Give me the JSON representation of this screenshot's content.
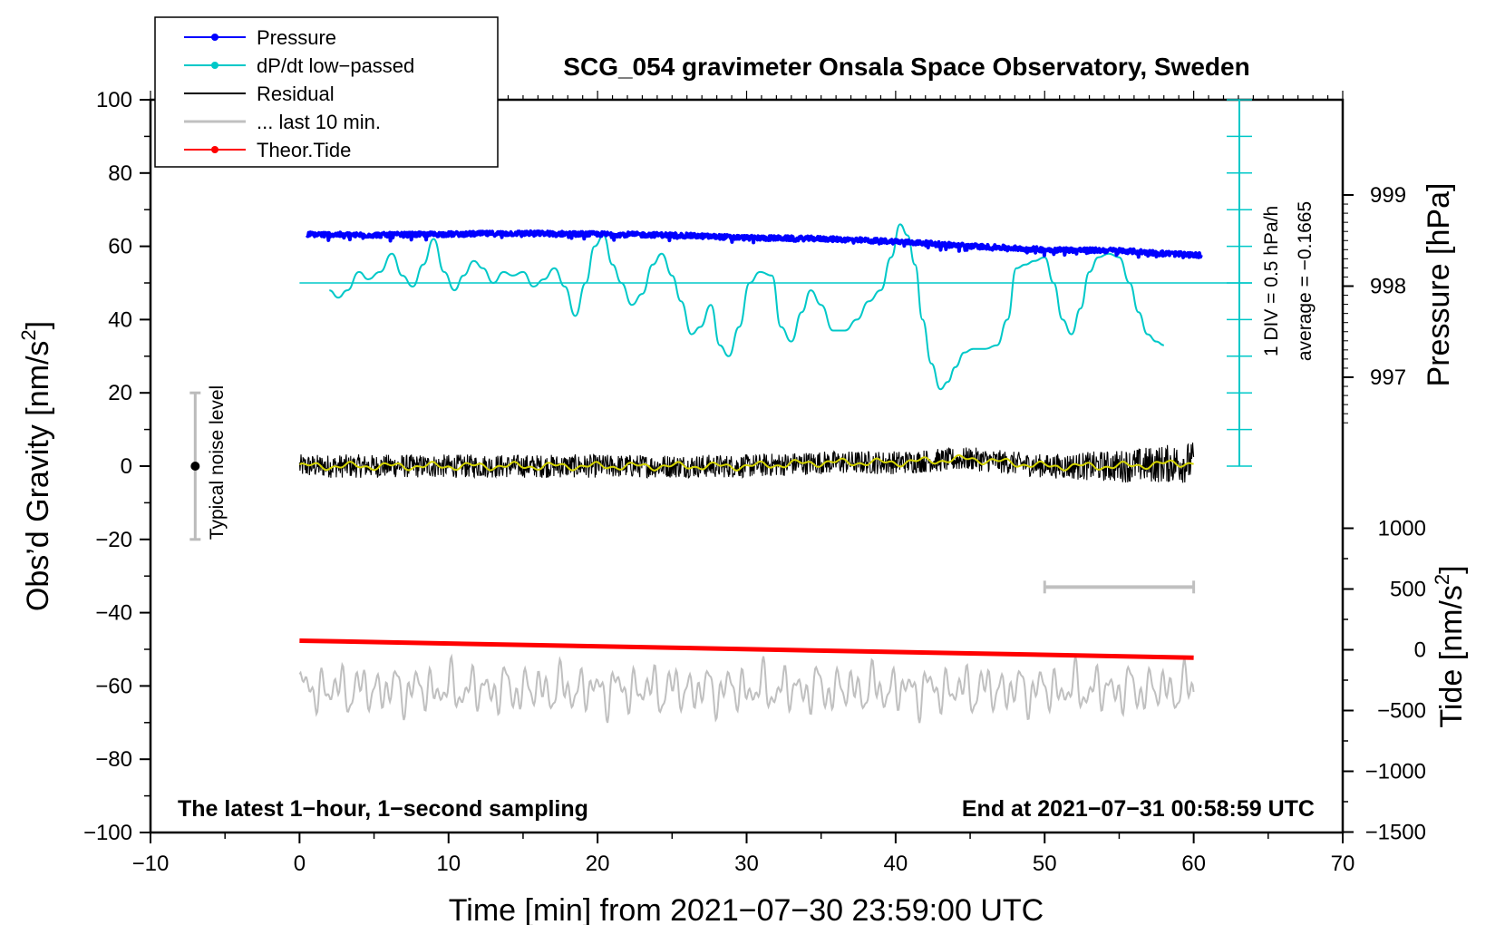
{
  "chart_data": {
    "type": "line",
    "title": "SCG_054 gravimeter Onsala Space Observatory, Sweden",
    "xlabel": "Time [min] from 2021−07−30 23:59:00 UTC",
    "ylabel_left_main": "Obs’d Gravity [nm/s",
    "ylabel_left_sup": "2",
    "ylabel_left_end": "]",
    "ylabel_right_pressure": "Pressure [hPa]",
    "ylabel_right_tide_main": "Tide [nm/s",
    "ylabel_right_tide_sup": "2",
    "ylabel_right_tide_end": "]",
    "xlim": [
      -10,
      70
    ],
    "ylim_gravity": [
      -100,
      100
    ],
    "x_ticks": [
      "−10",
      "0",
      "10",
      "20",
      "30",
      "40",
      "50",
      "60",
      "70"
    ],
    "y_ticks": [
      "−100",
      "−80",
      "−60",
      "−40",
      "−20",
      "0",
      "20",
      "40",
      "60",
      "80",
      "100"
    ],
    "pressure_ticks": [
      "997",
      "998",
      "999"
    ],
    "pressure_tick_values": [
      997,
      998,
      999
    ],
    "tide_ticks": [
      "−1500",
      "−1000",
      "−500",
      "0",
      "500",
      "1000"
    ],
    "tide_tick_values": [
      -1500,
      -1000,
      -500,
      0,
      500,
      1000
    ],
    "legend": [
      {
        "label": "Pressure",
        "color": "#0000ff",
        "marker": true
      },
      {
        "label": "dP/dt low−passed",
        "color": "#00c8c8",
        "marker": true
      },
      {
        "label": "Residual",
        "color": "#000000",
        "marker": false
      },
      {
        "label": "... last 10 min.",
        "color": "#c0c0c0",
        "marker": false
      },
      {
        "label": "Theor.Tide",
        "color": "#ff0000",
        "marker": true
      }
    ],
    "noise_label": "Typical noise level",
    "noise_bar": {
      "x": -7,
      "center": 0,
      "half_range": 20
    },
    "dpdt_scale_label": "1 DIV = 0.5 hPa/h",
    "dpdt_average_label": "average = −0.1665",
    "bottom_left_note": "The latest 1−hour, 1−second sampling",
    "bottom_right_note": "End at 2021−07−31 00:58:59 UTC",
    "last10_bar": {
      "x_start": 50,
      "x_end": 60,
      "y": -33
    },
    "series": [
      {
        "name": "Pressure",
        "units": "hPa",
        "color": "#0000ff",
        "x": [
          0,
          5,
          10,
          15,
          20,
          25,
          30,
          35,
          40,
          45,
          50,
          55,
          60
        ],
        "values": [
          998.57,
          998.56,
          998.57,
          998.58,
          998.57,
          998.56,
          998.53,
          998.52,
          998.49,
          998.44,
          998.4,
          998.39,
          998.34
        ]
      },
      {
        "name": "dP/dt low−passed",
        "units": "nm/s2 (plotted)",
        "color": "#00c8c8",
        "x": [
          2,
          2.6,
          3.2,
          4,
          4.6,
          5.4,
          6.2,
          6.9,
          7.6,
          8.3,
          9.0,
          9.7,
          10.4,
          11.0,
          11.7,
          12.3,
          13.0,
          13.7,
          14.3,
          15.0,
          15.7,
          16.4,
          17.1,
          17.8,
          18.5,
          19.2,
          19.8,
          20.4,
          21.0,
          21.6,
          22.3,
          23.0,
          23.7,
          24.3,
          25.0,
          25.6,
          26.3,
          26.9,
          27.6,
          28.2,
          28.8,
          29.5,
          30.2,
          30.9,
          31.7,
          32.3,
          33.0,
          33.7,
          34.3,
          35.0,
          35.8,
          36.6,
          37.4,
          38.2,
          39.0,
          39.7,
          40.3,
          40.8,
          41.3,
          41.8,
          42.4,
          43.0,
          43.5,
          44.0,
          44.6,
          45.2,
          46.0,
          46.8,
          47.5,
          48.1,
          48.7,
          49.3,
          50.0,
          50.6,
          51.2,
          51.8,
          52.4,
          53.0,
          53.6,
          54.3,
          55.0,
          55.7,
          56.3,
          56.9,
          57.5,
          58.0
        ],
        "values": [
          48,
          46,
          48,
          53,
          51,
          53,
          58,
          52,
          49,
          55,
          62,
          53,
          48,
          52,
          56,
          54,
          50,
          53,
          52,
          53,
          49,
          51,
          54,
          49,
          41,
          50,
          60,
          63,
          55,
          50,
          44,
          47,
          55,
          58,
          52,
          45,
          36,
          38,
          44,
          33,
          30,
          38,
          50,
          53,
          52,
          38,
          34,
          42,
          48,
          44,
          37,
          37,
          40,
          45,
          48,
          57,
          66,
          63,
          55,
          40,
          28,
          21,
          23,
          27,
          31,
          32,
          32,
          33,
          40,
          54,
          55,
          56,
          57,
          50,
          40,
          36,
          43,
          53,
          57,
          58,
          57,
          50,
          42,
          36,
          34,
          33
        ]
      },
      {
        "name": "Residual",
        "units": "nm/s2",
        "color": "#000000",
        "x": [
          0,
          5,
          10,
          15,
          20,
          25,
          30,
          35,
          40,
          45,
          50,
          55,
          60
        ],
        "values": [
          0,
          0,
          0,
          0,
          0,
          0,
          0,
          1,
          1,
          2,
          0,
          0,
          1
        ]
      },
      {
        "name": "... last 10 min.",
        "units": "nm/s2",
        "color": "#c0c0c0",
        "x": [
          0,
          60
        ],
        "values": [
          -60,
          -60
        ]
      },
      {
        "name": "Theor.Tide",
        "units": "nm/s2 (tide axis)",
        "color": "#ff0000",
        "x": [
          0,
          60
        ],
        "values": [
          75,
          -65
        ]
      }
    ]
  }
}
